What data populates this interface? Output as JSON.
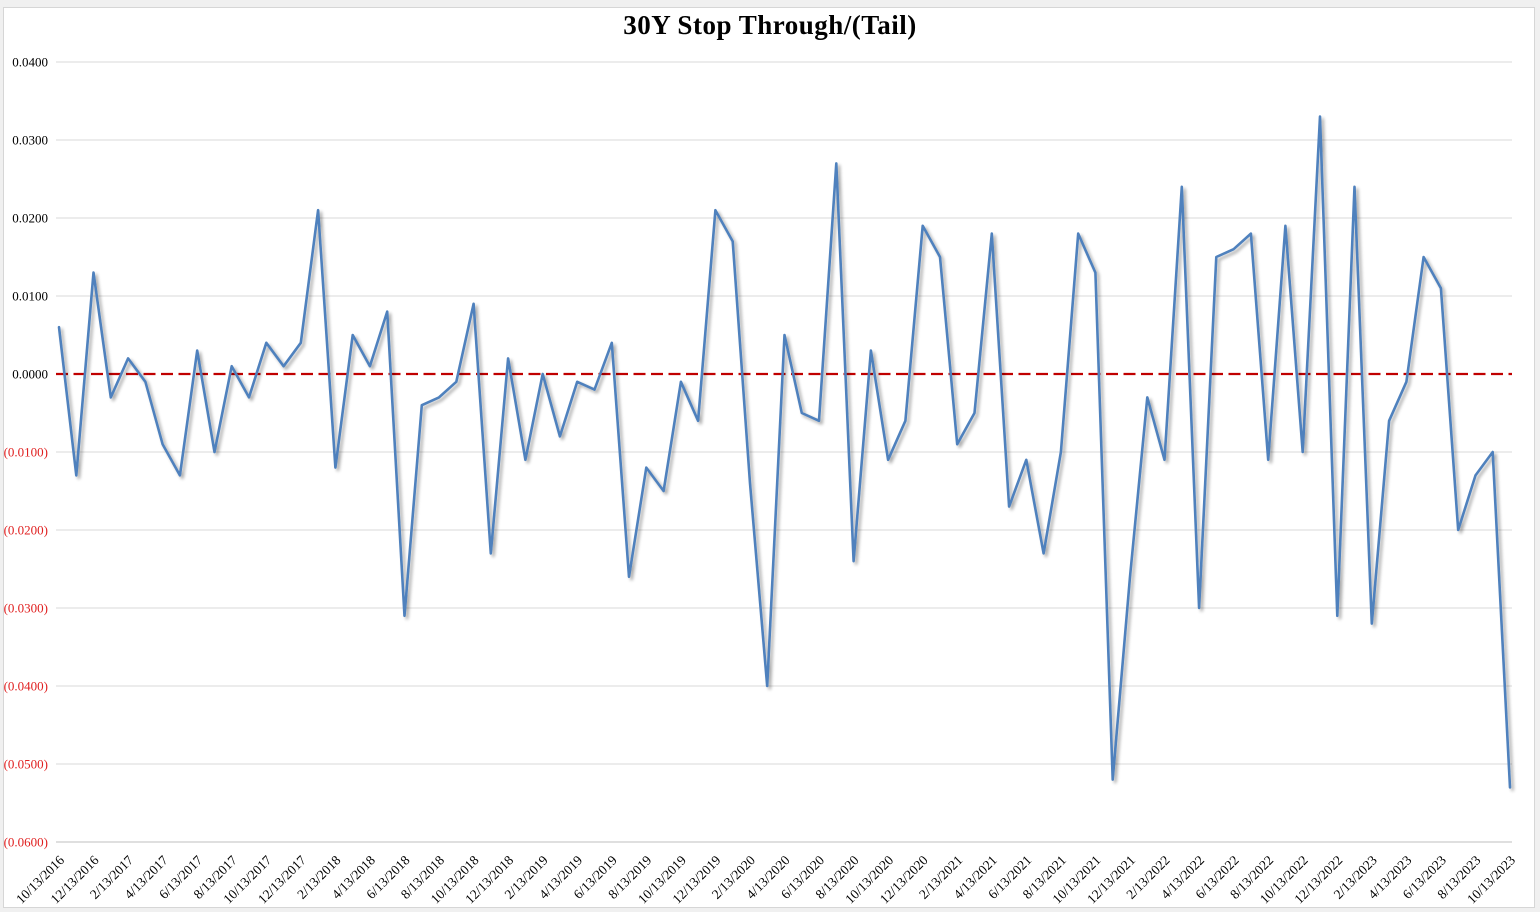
{
  "chart_data": {
    "type": "line",
    "title": "30Y Stop Through/(Tail)",
    "legend": "none",
    "grid": true,
    "ylim": [
      -0.06,
      0.04
    ],
    "series_name": "30Y stop through / (tail)",
    "series_color": "#4F81BD",
    "zero_line_color": "#C00000",
    "gridline_color": "#D9D9D9",
    "bottom_axis_color": "#BFBFBF",
    "positive_label_color": "#000000",
    "negative_label_color": "#E01F1F",
    "y_ticks": [
      {
        "value": 0.04,
        "label": "0.0400"
      },
      {
        "value": 0.03,
        "label": "0.0300"
      },
      {
        "value": 0.02,
        "label": "0.0200"
      },
      {
        "value": 0.01,
        "label": "0.0100"
      },
      {
        "value": 0.0,
        "label": "0.0000"
      },
      {
        "value": -0.01,
        "label": "(0.0100)"
      },
      {
        "value": -0.02,
        "label": "(0.0200)"
      },
      {
        "value": -0.03,
        "label": "(0.0300)"
      },
      {
        "value": -0.04,
        "label": "(0.0400)"
      },
      {
        "value": -0.05,
        "label": "(0.0500)"
      },
      {
        "value": -0.06,
        "label": "(0.0600)"
      }
    ],
    "x_tick_labels": [
      "10/13/2016",
      "12/13/2016",
      "2/13/2017",
      "4/13/2017",
      "6/13/2017",
      "8/13/2017",
      "10/13/2017",
      "12/13/2017",
      "2/13/2018",
      "4/13/2018",
      "6/13/2018",
      "8/13/2018",
      "10/13/2018",
      "12/13/2018",
      "2/13/2019",
      "4/13/2019",
      "6/13/2019",
      "8/13/2019",
      "10/13/2019",
      "12/13/2019",
      "2/13/2020",
      "4/13/2020",
      "6/13/2020",
      "8/13/2020",
      "10/13/2020",
      "12/13/2020",
      "2/13/2021",
      "4/13/2021",
      "6/13/2021",
      "8/13/2021",
      "10/13/2021",
      "12/13/2021",
      "2/13/2022",
      "4/13/2022",
      "6/13/2022",
      "8/13/2022",
      "10/13/2022",
      "12/13/2022",
      "2/13/2023",
      "4/13/2023",
      "6/13/2023",
      "8/13/2023",
      "10/13/2023"
    ],
    "x": [
      "10/13/2016",
      "11/13/2016",
      "12/13/2016",
      "1/13/2017",
      "2/13/2017",
      "3/13/2017",
      "4/13/2017",
      "5/13/2017",
      "6/13/2017",
      "7/13/2017",
      "8/13/2017",
      "9/13/2017",
      "10/13/2017",
      "11/13/2017",
      "12/13/2017",
      "1/13/2018",
      "2/13/2018",
      "3/13/2018",
      "4/13/2018",
      "5/13/2018",
      "6/13/2018",
      "7/13/2018",
      "8/13/2018",
      "9/13/2018",
      "10/13/2018",
      "11/13/2018",
      "12/13/2018",
      "1/13/2019",
      "2/13/2019",
      "3/13/2019",
      "4/13/2019",
      "5/13/2019",
      "6/13/2019",
      "7/13/2019",
      "8/13/2019",
      "9/13/2019",
      "10/13/2019",
      "11/13/2019",
      "12/13/2019",
      "1/13/2020",
      "2/13/2020",
      "3/13/2020",
      "4/13/2020",
      "5/13/2020",
      "6/13/2020",
      "7/13/2020",
      "8/13/2020",
      "9/13/2020",
      "10/13/2020",
      "11/13/2020",
      "12/13/2020",
      "1/13/2021",
      "2/13/2021",
      "3/13/2021",
      "4/13/2021",
      "5/13/2021",
      "6/13/2021",
      "7/13/2021",
      "8/13/2021",
      "9/13/2021",
      "10/13/2021",
      "11/13/2021",
      "12/13/2021",
      "1/13/2022",
      "2/13/2022",
      "3/13/2022",
      "4/13/2022",
      "5/13/2022",
      "6/13/2022",
      "7/13/2022",
      "8/13/2022",
      "9/13/2022",
      "10/13/2022",
      "11/13/2022",
      "12/13/2022",
      "1/13/2023",
      "2/13/2023",
      "3/13/2023",
      "4/13/2023",
      "5/13/2023",
      "6/13/2023",
      "7/13/2023",
      "8/13/2023",
      "9/13/2023",
      "10/13/2023"
    ],
    "values": [
      0.006,
      -0.013,
      0.013,
      -0.003,
      0.002,
      -0.001,
      -0.009,
      -0.013,
      0.003,
      -0.01,
      0.001,
      -0.003,
      0.004,
      0.001,
      0.004,
      0.021,
      -0.012,
      0.005,
      0.001,
      0.008,
      -0.031,
      -0.004,
      -0.003,
      -0.001,
      0.009,
      -0.023,
      0.002,
      -0.011,
      0.0,
      -0.008,
      -0.001,
      -0.002,
      0.004,
      -0.026,
      -0.012,
      -0.015,
      -0.001,
      -0.006,
      0.021,
      0.017,
      -0.014,
      -0.04,
      0.005,
      -0.005,
      -0.006,
      0.027,
      -0.024,
      0.003,
      -0.011,
      -0.006,
      0.019,
      0.015,
      -0.009,
      -0.005,
      0.018,
      -0.017,
      -0.011,
      -0.023,
      -0.01,
      0.018,
      0.013,
      -0.052,
      -0.026,
      -0.003,
      -0.011,
      0.024,
      -0.03,
      0.015,
      0.016,
      0.018,
      -0.011,
      0.019,
      -0.01,
      0.033,
      -0.031,
      0.024,
      -0.032,
      -0.006,
      -0.001,
      0.015,
      0.011,
      -0.02,
      -0.013,
      -0.01,
      -0.053
    ]
  }
}
